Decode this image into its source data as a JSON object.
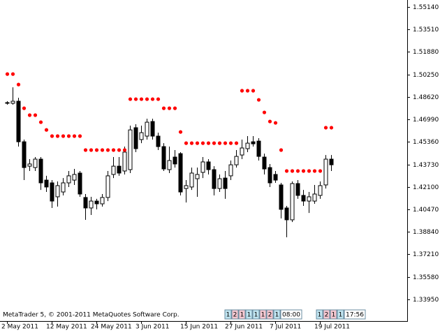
{
  "chart_data": {
    "type": "candlestick",
    "categories": [
      "2 May 2011",
      null,
      null,
      null,
      null,
      null,
      null,
      null,
      "12 May 2011",
      null,
      null,
      null,
      null,
      null,
      null,
      null,
      "24 May 2011",
      null,
      null,
      null,
      null,
      null,
      null,
      null,
      "3 Jun 2011",
      null,
      null,
      null,
      null,
      null,
      null,
      null,
      "15 Jun 2011",
      null,
      null,
      null,
      null,
      null,
      null,
      null,
      "27 Jun 2011",
      null,
      null,
      null,
      null,
      null,
      null,
      null,
      "7 Jul 2011",
      null,
      null,
      null,
      null,
      null,
      null,
      null,
      "19 Jul 2011",
      null,
      null
    ],
    "open": [
      1.4821,
      1.4816,
      1.4831,
      1.4537,
      1.436,
      1.435,
      1.4411,
      1.4259,
      1.4239,
      1.4138,
      1.4173,
      1.4239,
      1.4259,
      1.431,
      1.4133,
      1.4057,
      1.4107,
      1.4087,
      1.4133,
      1.43,
      1.436,
      1.4325,
      1.4335,
      1.4639,
      1.4553,
      1.4578,
      1.4684,
      1.4578,
      1.4502,
      1.4335,
      1.4426,
      1.4451,
      1.4198,
      1.4209,
      1.4269,
      1.4315,
      1.4391,
      1.4335,
      1.4198,
      1.4274,
      1.429,
      1.437,
      1.4441,
      1.4487,
      1.4537,
      1.4542,
      1.4426,
      1.435,
      1.43,
      1.4224,
      1.4057,
      1.3971,
      1.4234,
      1.4148,
      1.4107,
      1.4107,
      1.4148,
      1.4224,
      1.4411
    ],
    "high": [
      1.4831,
      1.4932,
      1.4856,
      1.4553,
      1.4411,
      1.4426,
      1.4426,
      1.429,
      1.4259,
      1.4249,
      1.4274,
      1.4325,
      1.434,
      1.4325,
      1.4158,
      1.4138,
      1.4123,
      1.4158,
      1.4325,
      1.4426,
      1.4426,
      1.4502,
      1.4654,
      1.4664,
      1.4654,
      1.4704,
      1.4704,
      1.4603,
      1.4527,
      1.4502,
      1.4477,
      1.4462,
      1.4259,
      1.435,
      1.435,
      1.4426,
      1.4411,
      1.436,
      1.43,
      1.4325,
      1.4401,
      1.4477,
      1.4553,
      1.4578,
      1.4578,
      1.4563,
      1.4451,
      1.4376,
      1.4325,
      1.4239,
      1.4072,
      1.4249,
      1.4259,
      1.4188,
      1.4173,
      1.4224,
      1.4249,
      1.4441,
      1.4441
    ],
    "low": [
      1.4806,
      1.4806,
      1.4502,
      1.4259,
      1.4325,
      1.4325,
      1.4188,
      1.4173,
      1.4057,
      1.4067,
      1.4148,
      1.4209,
      1.4224,
      1.4138,
      1.3971,
      1.4006,
      1.4047,
      1.4067,
      1.4107,
      1.4274,
      1.429,
      1.43,
      1.431,
      1.4462,
      1.4527,
      1.4553,
      1.4553,
      1.4477,
      1.4325,
      1.431,
      1.435,
      1.4148,
      1.4097,
      1.4188,
      1.4138,
      1.4274,
      1.43,
      1.4148,
      1.4173,
      1.4123,
      1.4259,
      1.435,
      1.4411,
      1.4462,
      1.4502,
      1.4401,
      1.43,
      1.4209,
      1.4239,
      1.3981,
      1.3844,
      1.3955,
      1.4123,
      1.4072,
      1.4021,
      1.4087,
      1.4123,
      1.4198,
      1.4325
    ],
    "close": [
      1.4821,
      1.4831,
      1.4537,
      1.435,
      1.4376,
      1.4411,
      1.4239,
      1.4209,
      1.4107,
      1.4219,
      1.4239,
      1.429,
      1.43,
      1.4158,
      1.4057,
      1.4107,
      1.4087,
      1.4133,
      1.429,
      1.436,
      1.431,
      1.4462,
      1.4623,
      1.4487,
      1.4603,
      1.4679,
      1.4578,
      1.4502,
      1.434,
      1.4401,
      1.4376,
      1.4173,
      1.4219,
      1.431,
      1.43,
      1.4391,
      1.4335,
      1.4198,
      1.4269,
      1.4198,
      1.437,
      1.4431,
      1.4492,
      1.4527,
      1.4522,
      1.4431,
      1.434,
      1.4239,
      1.4259,
      1.4047,
      1.3971,
      1.4234,
      1.4148,
      1.4107,
      1.4138,
      1.4158,
      1.4219,
      1.4411,
      1.437
    ],
    "sar": [
      1.5028,
      1.5028,
      1.4952,
      1.478,
      1.473,
      1.473,
      1.4679,
      1.4623,
      1.4578,
      1.4578,
      1.4578,
      1.4578,
      1.4578,
      1.4578,
      1.4477,
      1.4477,
      1.4477,
      1.4477,
      1.4477,
      1.4477,
      1.4477,
      1.4477,
      1.4846,
      1.4846,
      1.4846,
      1.4846,
      1.4846,
      1.4846,
      1.478,
      1.478,
      1.478,
      1.4608,
      1.4527,
      1.4527,
      1.4527,
      1.4527,
      1.4527,
      1.4527,
      1.4527,
      1.4527,
      1.4527,
      1.4527,
      1.4907,
      1.4907,
      1.4907,
      1.4841,
      1.475,
      1.4684,
      1.4674,
      1.4477,
      1.4325,
      1.4325,
      1.4325,
      1.4325,
      1.4325,
      1.4325,
      1.4325,
      1.4639,
      1.4639
    ],
    "up_color": "#ffffff",
    "down_color": "#000000",
    "sar_color": "#ff0000",
    "ylim": [
      1.3237,
      1.5565
    ],
    "yticks": [
      {
        "value": 1.5514,
        "label": "1.55140"
      },
      {
        "value": 1.5351,
        "label": "1.53510"
      },
      {
        "value": 1.5188,
        "label": "1.51880"
      },
      {
        "value": 1.5025,
        "label": "1.50250"
      },
      {
        "value": 1.4862,
        "label": "1.48620"
      },
      {
        "value": 1.4699,
        "label": "1.46990"
      },
      {
        "value": 1.4536,
        "label": "1.45360"
      },
      {
        "value": 1.4373,
        "label": "1.43730"
      },
      {
        "value": 1.421,
        "label": "1.42100"
      },
      {
        "value": 1.4047,
        "label": "1.40470"
      },
      {
        "value": 1.3884,
        "label": "1.38840"
      },
      {
        "value": 1.3721,
        "label": "1.37210"
      },
      {
        "value": 1.3558,
        "label": "1.35580"
      },
      {
        "value": 1.3395,
        "label": "1.33950"
      }
    ],
    "annotations": [
      "MetaTrader 5, © 2001-2011 MetaQuotes Software Corp."
    ],
    "status_boxes": [
      [
        "1",
        "2",
        "1",
        "1",
        "1",
        "1",
        "2",
        "1",
        "08:00"
      ],
      [
        "1",
        "2",
        "1",
        "1",
        "17:56"
      ]
    ]
  }
}
